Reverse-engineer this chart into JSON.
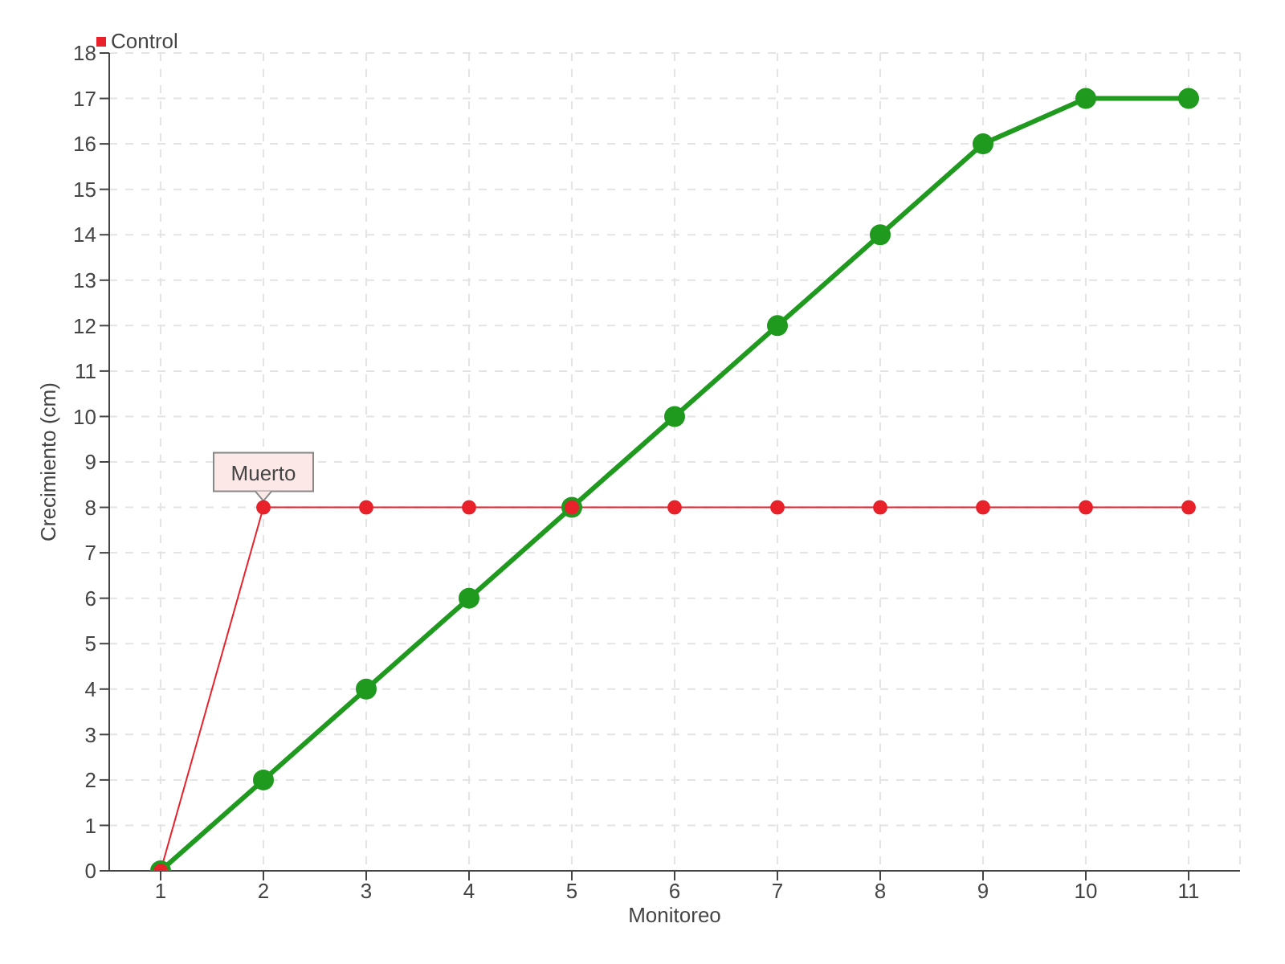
{
  "chart_data": {
    "type": "line",
    "xlabel": "Monitoreo",
    "ylabel": "Crecimiento (cm)",
    "x": [
      1,
      2,
      3,
      4,
      5,
      6,
      7,
      8,
      9,
      10,
      11
    ],
    "series": [
      {
        "color": "#1f9a1f",
        "values": [
          0,
          2,
          4,
          6,
          8,
          10,
          12,
          14,
          16,
          17,
          17
        ]
      },
      {
        "name": "Control",
        "color": "#e8212b",
        "values": [
          0,
          8,
          8,
          8,
          8,
          8,
          8,
          8,
          8,
          8,
          8
        ]
      }
    ],
    "xlim": [
      0.5,
      11.5
    ],
    "xticks": [
      1,
      2,
      3,
      4,
      5,
      6,
      7,
      8,
      9,
      10,
      11
    ],
    "ylim": [
      0,
      18
    ],
    "yticks": [
      0,
      1,
      2,
      3,
      4,
      5,
      6,
      7,
      8,
      9,
      10,
      11,
      12,
      13,
      14,
      15,
      16,
      17,
      18
    ],
    "grid": true,
    "legend": "top left",
    "marker": "circle",
    "line_style": "solid",
    "annotations": [
      {
        "text": "Muerto",
        "x": 2,
        "y": 8
      }
    ]
  }
}
